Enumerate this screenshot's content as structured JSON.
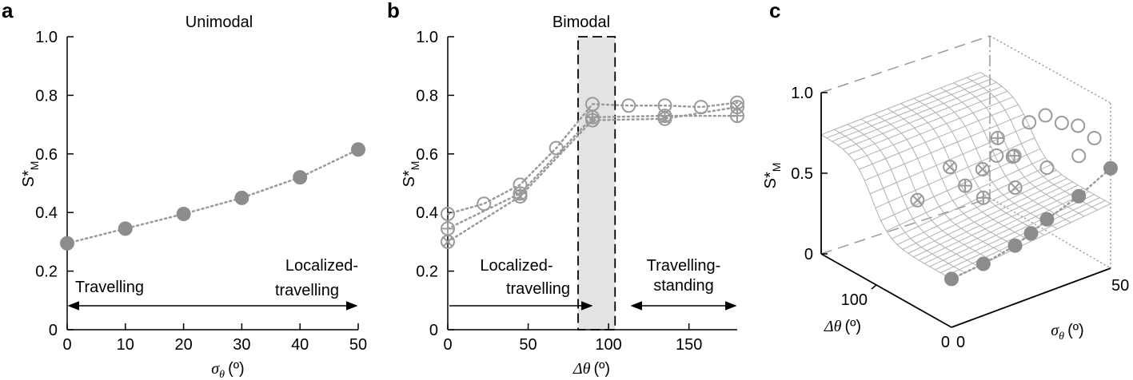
{
  "panels": {
    "a": {
      "letter": "a",
      "title": "Unimodal"
    },
    "b": {
      "letter": "b",
      "title": "Bimodal"
    },
    "c": {
      "letter": "c",
      "title": ""
    }
  },
  "annotations": {
    "a_left": "Travelling",
    "a_right_1": "Localized-",
    "a_right_2": "travelling",
    "b_left_1": "Localized-",
    "b_left_2": "travelling",
    "b_right_1": "Travelling-",
    "b_right_2": "standing"
  },
  "labels": {
    "ylabel": "S*",
    "ylabel_sub": "M",
    "sigma_sym": "σ",
    "theta_sub": "θ",
    "delta_sym": "Δθ",
    "degree_unit": "(º)"
  },
  "colors": {
    "marker_fill": "#8c8c8c",
    "marker_stroke": "#9a9a9a",
    "line": "#9a9a9a",
    "shade": "#e3e3e3",
    "mesh": "#b0b0b0",
    "axis": "#000000"
  },
  "chart_data": [
    {
      "panel": "a",
      "type": "scatter",
      "title": "Unimodal",
      "xlabel": "σθ (º)",
      "ylabel": "S*M",
      "xlim": [
        0,
        50
      ],
      "ylim": [
        0,
        1.0
      ],
      "xticks": [
        0,
        10,
        20,
        30,
        40,
        50
      ],
      "yticks": [
        0,
        0.2,
        0.4,
        0.6,
        0.8,
        1.0
      ],
      "ytick_labels": [
        "0",
        "0.2",
        "0.4",
        "0.6",
        "0.8",
        "1.0"
      ],
      "series": [
        {
          "marker": "filled-circle",
          "line": "dotted",
          "x": [
            0,
            10,
            20,
            30,
            40,
            50
          ],
          "y": [
            0.295,
            0.345,
            0.395,
            0.45,
            0.52,
            0.615
          ]
        }
      ],
      "arrow": {
        "from": 0,
        "to": 50,
        "y": 0.08,
        "direction": "both"
      }
    },
    {
      "panel": "b",
      "type": "scatter",
      "title": "Bimodal",
      "xlabel": "Δθ (º)",
      "ylabel": "S*M",
      "xlim": [
        0,
        180
      ],
      "ylim": [
        0,
        1.0
      ],
      "xticks": [
        0,
        50,
        100,
        150
      ],
      "yticks": [
        0,
        0.2,
        0.4,
        0.6,
        0.8,
        1.0
      ],
      "ytick_labels": [
        "0",
        "0.2",
        "0.4",
        "0.6",
        "0.8",
        "1.0"
      ],
      "series": [
        {
          "marker": "open-circle",
          "line": "dotted",
          "x": [
            0,
            22.5,
            45,
            67.5,
            90,
            112.5,
            135,
            157.5,
            180
          ],
          "y": [
            0.395,
            0.43,
            0.495,
            0.62,
            0.77,
            0.765,
            0.765,
            0.76,
            0.775
          ]
        },
        {
          "marker": "circle-cross",
          "line": "dotted",
          "x": [
            0,
            45,
            90,
            135,
            180
          ],
          "y": [
            0.3,
            0.455,
            0.715,
            0.72,
            0.76
          ]
        },
        {
          "marker": "circle-plus",
          "line": "dotted",
          "x": [
            0,
            45,
            90,
            135,
            180
          ],
          "y": [
            0.345,
            0.465,
            0.725,
            0.73,
            0.73
          ]
        }
      ],
      "shaded_region": {
        "x": [
          90,
          112.5
        ]
      },
      "arrows": [
        {
          "from": 0,
          "to": 90,
          "y": 0.08,
          "direction": "right"
        },
        {
          "from": 112.5,
          "to": 180,
          "y": 0.08,
          "direction": "both"
        }
      ]
    },
    {
      "panel": "c",
      "type": "surface",
      "zlabel": "S*M",
      "xlabel": "Δθ (º)",
      "ylabel": "σθ (º)",
      "zlim": [
        0,
        1.0
      ],
      "zticks": [
        0,
        0.5,
        1.0
      ],
      "zticks_labels": [
        "0",
        "0.5",
        "1.0"
      ],
      "xticks": [
        0,
        100
      ],
      "yticks": [
        0,
        50
      ],
      "open_circles": [
        [
          0,
          30,
          0.77
        ],
        [
          0,
          40,
          0.77
        ],
        [
          22.5,
          50,
          0.75
        ],
        [
          45,
          50,
          0.77
        ],
        [
          67.5,
          50,
          0.73
        ],
        [
          90,
          50,
          0.72
        ],
        [
          112.5,
          50,
          0.62
        ],
        [
          135,
          50,
          0.35
        ],
        [
          157.5,
          50,
          0.3
        ]
      ],
      "cross_circles": [
        [
          0,
          20,
          0.72
        ],
        [
          45,
          20,
          0.72
        ],
        [
          90,
          20,
          0.62
        ],
        [
          135,
          20,
          0.3
        ]
      ],
      "plus_circles": [
        [
          0,
          10,
          0.73
        ],
        [
          45,
          30,
          0.73
        ],
        [
          90,
          35,
          0.69
        ],
        [
          135,
          35,
          0.28
        ]
      ],
      "filled_circles_sigma": {
        "x": [
          180,
          180,
          180,
          180,
          180,
          180,
          180
        ],
        "y": [
          0,
          10,
          20,
          25,
          30,
          40,
          50
        ],
        "z": [
          0.3,
          0.32,
          0.36,
          0.4,
          0.45,
          0.52,
          0.62
        ]
      }
    }
  ]
}
